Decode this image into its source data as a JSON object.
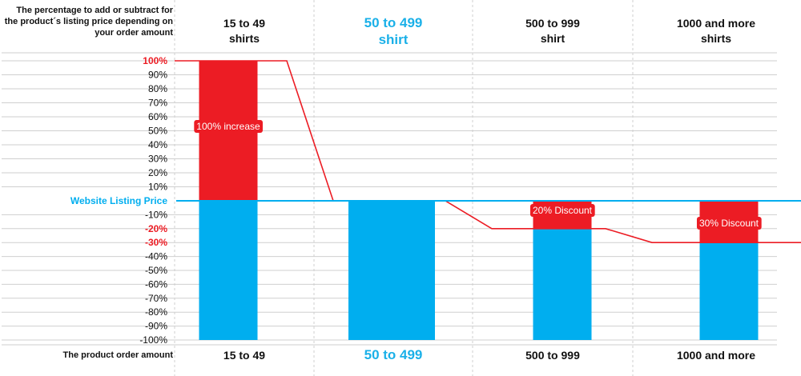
{
  "header": {
    "title": "The percentage to add or subtract for the product´s listing price depending on your order amount",
    "columns": [
      {
        "label": "15 to 49\nshirts",
        "highlight": false
      },
      {
        "label": "50 to 499\nshirt",
        "highlight": true
      },
      {
        "label": "500 to 999\nshirt",
        "highlight": false
      },
      {
        "label": "1000 and more\nshirts",
        "highlight": false
      }
    ]
  },
  "footer": {
    "title": "The product order amount",
    "columns": [
      {
        "label": "15 to 49",
        "highlight": false
      },
      {
        "label": "50 to 499",
        "highlight": true
      },
      {
        "label": "500 to 999",
        "highlight": false
      },
      {
        "label": "1000 and more",
        "highlight": false
      }
    ]
  },
  "colors": {
    "red": "#ec1c24",
    "blue": "#00aeef",
    "grid": "#cfcfcf",
    "text": "#111111"
  },
  "chart_data": {
    "type": "bar",
    "categories": [
      "15 to 49",
      "50 to 499",
      "500 to 999",
      "1000 and more"
    ],
    "values": [
      100,
      0,
      -20,
      -30
    ],
    "ylim": [
      -100,
      100
    ],
    "reference_line": {
      "value": 0,
      "label": "Website Listing Price"
    },
    "y_ticks": [
      {
        "value": 100,
        "label": "100%",
        "red": true
      },
      {
        "value": 90,
        "label": "90%"
      },
      {
        "value": 80,
        "label": "80%"
      },
      {
        "value": 70,
        "label": "70%"
      },
      {
        "value": 60,
        "label": "60%"
      },
      {
        "value": 50,
        "label": "50%"
      },
      {
        "value": 40,
        "label": "40%"
      },
      {
        "value": 30,
        "label": "30%"
      },
      {
        "value": 20,
        "label": "20%"
      },
      {
        "value": 10,
        "label": "10%"
      },
      {
        "value": -10,
        "label": "-10%"
      },
      {
        "value": -20,
        "label": "-20%",
        "red": true
      },
      {
        "value": -30,
        "label": "-30%",
        "red": true
      },
      {
        "value": -40,
        "label": "-40%"
      },
      {
        "value": -50,
        "label": "-50%"
      },
      {
        "value": -60,
        "label": "-60%"
      },
      {
        "value": -70,
        "label": "-70%"
      },
      {
        "value": -80,
        "label": "-80%"
      },
      {
        "value": -90,
        "label": "-90%"
      },
      {
        "value": -100,
        "label": "-100%"
      }
    ],
    "annotations": [
      "100%  increase",
      "",
      "20% Discount",
      "30% Discount"
    ],
    "grid": true
  }
}
